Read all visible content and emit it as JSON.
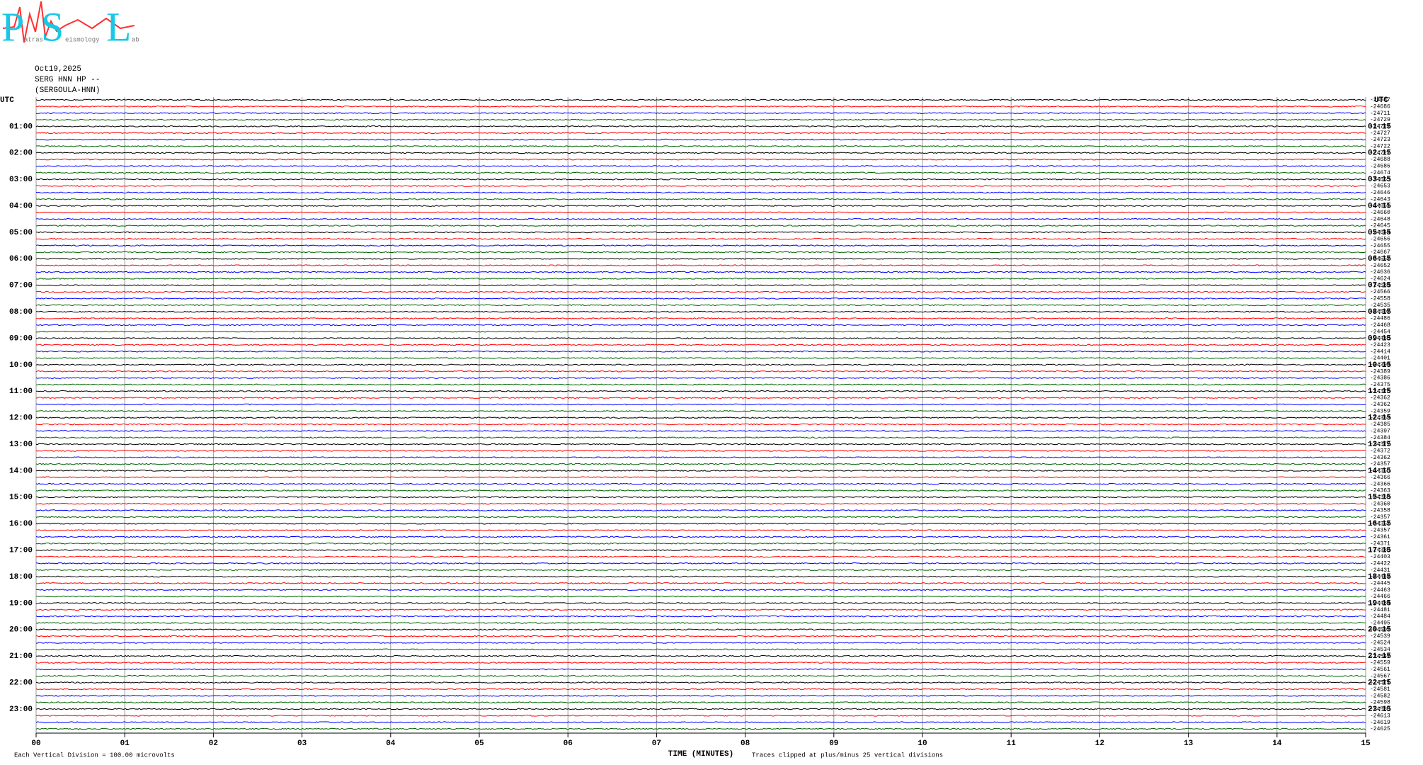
{
  "header": {
    "logo_letters": [
      "P",
      "S",
      "L"
    ],
    "logo_words": [
      "atras",
      "eismology",
      "ab"
    ],
    "date": "Oct19,2025",
    "station": "SERG HNN HP --",
    "station_name": "(SERGOULA-HNN)"
  },
  "left_labels": [
    "UTC",
    "01:00",
    "02:00",
    "03:00",
    "04:00",
    "05:00",
    "06:00",
    "07:00",
    "08:00",
    "09:00",
    "10:00",
    "11:00",
    "12:00",
    "13:00",
    "14:00",
    "15:00",
    "16:00",
    "17:00",
    "18:00",
    "19:00",
    "20:00",
    "21:00",
    "22:00",
    "23:00"
  ],
  "right_labels": [
    "UTC",
    "01:15",
    "02:15",
    "03:15",
    "04:15",
    "05:15",
    "06:15",
    "07:15",
    "08:15",
    "09:15",
    "10:15",
    "11:15",
    "12:15",
    "13:15",
    "14:15",
    "15:15",
    "16:15",
    "17:15",
    "18:15",
    "19:15",
    "20:15",
    "21:15",
    "22:15",
    "23:15"
  ],
  "trace_levels": [
    -24687,
    -24686,
    -24711,
    -24729,
    -24722,
    -24727,
    -24723,
    -24722,
    -24727,
    -24688,
    -24686,
    -24674,
    -24665,
    -24653,
    -24646,
    -24643,
    -24661,
    -24660,
    -24648,
    -24645,
    -24644,
    -24656,
    -24655,
    -24667,
    -24667,
    -24652,
    -24636,
    -24624,
    -24589,
    -24566,
    -24558,
    -24535,
    -24507,
    -24486,
    -24468,
    -24454,
    -24438,
    -24423,
    -24414,
    -24401,
    -24393,
    -24389,
    -24386,
    -24375,
    -24370,
    -24362,
    -24362,
    -24359,
    -24363,
    -24385,
    -24397,
    -24384,
    -24377,
    -24372,
    -24362,
    -24357,
    -24358,
    -24366,
    -24366,
    -24363,
    -24360,
    -24360,
    -24358,
    -24357,
    -24357,
    -24357,
    -24361,
    -24371,
    -24388,
    -24403,
    -24422,
    -24431,
    -24442,
    -24445,
    -24463,
    -24466,
    -24484,
    -24481,
    -24484,
    -24495,
    -24502,
    -24539,
    -24524,
    -24534,
    -24547,
    -24559,
    -24561,
    -24567,
    -24571,
    -24581,
    -24582,
    -24598,
    -24588,
    -24613,
    -24619,
    -24625
  ],
  "trace_colors": [
    "#000000",
    "#ff0000",
    "#0000ff",
    "#006400"
  ],
  "x_axis": {
    "title": "TIME (MINUTES)",
    "ticks": [
      "00",
      "01",
      "02",
      "03",
      "04",
      "05",
      "06",
      "07",
      "08",
      "09",
      "10",
      "11",
      "12",
      "13",
      "14",
      "15"
    ]
  },
  "footer": {
    "division_note": "Each Vertical Division =  100.00 microvolts",
    "clip_note": "Traces clipped at plus/minus 25 vertical divisions"
  }
}
